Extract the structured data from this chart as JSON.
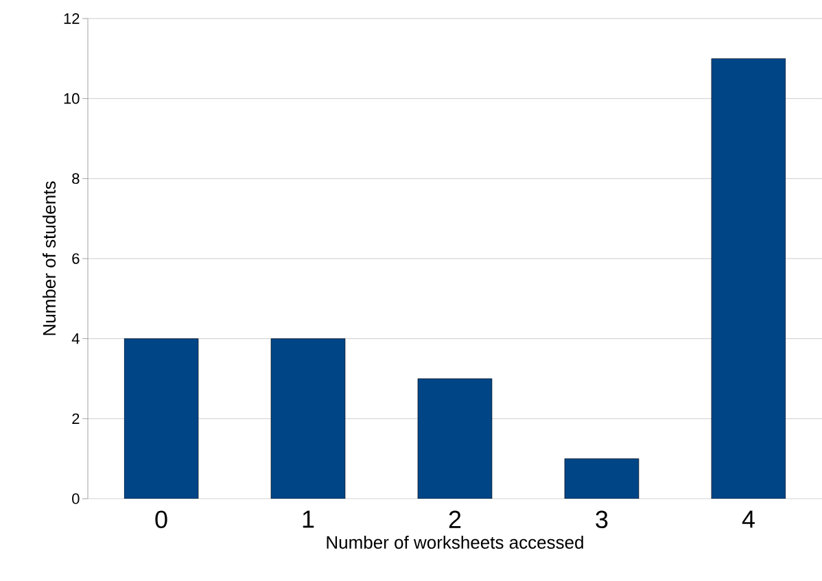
{
  "chart_data": {
    "type": "bar",
    "xlabel": "Number of worksheets accessed",
    "ylabel": "Number of students",
    "categories": [
      "0",
      "1",
      "2",
      "3",
      "4"
    ],
    "values": [
      4,
      4,
      3,
      1,
      11
    ],
    "color": "#004586",
    "ylim": [
      0,
      12
    ],
    "yticks": [
      0,
      2,
      4,
      6,
      8,
      10,
      12
    ],
    "grid": "y"
  }
}
